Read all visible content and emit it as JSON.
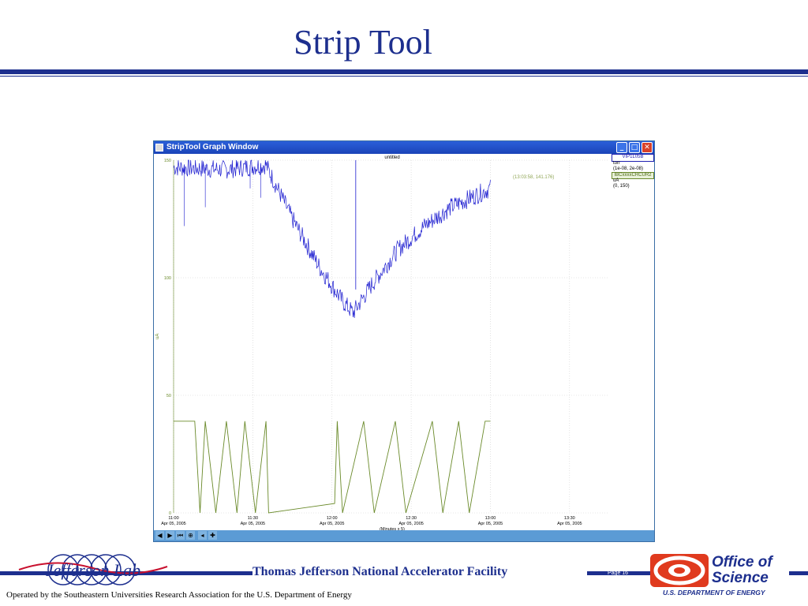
{
  "slide": {
    "title": "Strip Tool",
    "facility": "Thomas Jefferson National Accelerator Facility",
    "page_label": "Page 16",
    "operated_by": "Operated by the Southeastern Universities Research Association for the U.S. Department of  Energy",
    "jlab_logo_text": "Jefferson Lab",
    "doe": {
      "office": "Office of",
      "science": "Science",
      "department": "U.S. DEPARTMENT OF ENERGY"
    },
    "colors": {
      "brand_blue": "#1d2f8e",
      "doe_red": "#e03a1e"
    }
  },
  "window": {
    "title": "StripTool Graph Window",
    "buttons": {
      "minimize": "_",
      "maximize": "□",
      "close": "✕"
    }
  },
  "legend": {
    "channel1": {
      "name": "VIP1L05B",
      "units": "torr",
      "range": "(1e-08, 2e-08)",
      "color": "#1f1fd0"
    },
    "channel2": {
      "name": "IBCxxxxCRCUR2",
      "units": "uA",
      "range": "(0, 150)",
      "color": "#6a8a2a"
    }
  },
  "coord_readout": "(13:03:58, 141.176)",
  "toolbar": {
    "icons": [
      "arrow-left-icon",
      "arrow-right-icon",
      "skip-to-end-icon",
      "zoom-icon",
      "minus-icon",
      "plus-icon"
    ],
    "glyphs": [
      "◀",
      "▶",
      "⏮",
      "⊕",
      "◂",
      "✚"
    ]
  },
  "chart_data": {
    "type": "line",
    "title": "untitled",
    "xlabel": "(Minutes x 5)",
    "ylabel": "uA",
    "y_ticks": [
      0,
      50,
      100,
      150
    ],
    "ylim": [
      0,
      150
    ],
    "x_ticks": [
      {
        "time": "11:00",
        "date": "Apr 05, 2005"
      },
      {
        "time": "11:30",
        "date": "Apr 05, 2005"
      },
      {
        "time": "12:00",
        "date": "Apr 05, 2005"
      },
      {
        "time": "12:30",
        "date": "Apr 05, 2005"
      },
      {
        "time": "13:00",
        "date": "Apr 05, 2005"
      },
      {
        "time": "13:30",
        "date": "Apr 05, 2005"
      }
    ],
    "grid": true,
    "series": [
      {
        "name": "VIP1L05B",
        "color": "#1f1fd0",
        "minutes": [
          0,
          20,
          35,
          45,
          55,
          64,
          68,
          75,
          85,
          95,
          105,
          120
        ],
        "values": [
          147,
          146,
          148,
          125,
          105,
          90,
          85,
          97,
          112,
          122,
          130,
          138
        ]
      },
      {
        "name": "IBCxxxxCRCUR2",
        "color": "#6a8a2a",
        "minutes": [
          0,
          8,
          10,
          12,
          16,
          20,
          24,
          27,
          31,
          35,
          36,
          61,
          62,
          64,
          72,
          76,
          84,
          88,
          98,
          102,
          108,
          112,
          118,
          120
        ],
        "values": [
          39,
          39,
          0,
          39,
          0,
          39,
          0,
          39,
          0,
          39,
          0,
          4,
          39,
          0,
          39,
          0,
          39,
          0,
          39,
          0,
          39,
          0,
          39,
          39
        ]
      }
    ]
  }
}
